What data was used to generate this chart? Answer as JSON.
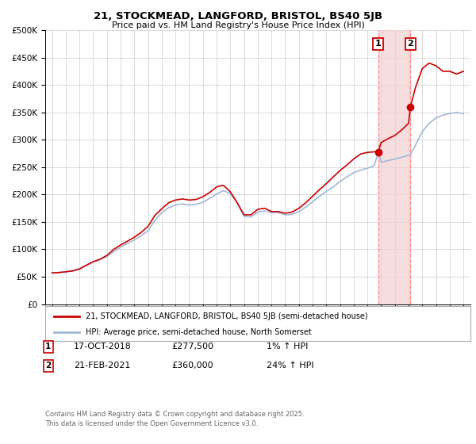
{
  "title1": "21, STOCKMEAD, LANGFORD, BRISTOL, BS40 5JB",
  "title2": "Price paid vs. HM Land Registry's House Price Index (HPI)",
  "background_color": "#ffffff",
  "plot_bg_color": "#ffffff",
  "grid_color": "#cccccc",
  "hpi_line_color": "#a0b8d8",
  "price_line_color": "#cc0000",
  "vline_color": "#ff8888",
  "vshade_color": "#f5d0d0",
  "legend_label1": "21, STOCKMEAD, LANGFORD, BRISTOL, BS40 5JB (semi-detached house)",
  "legend_label2": "HPI: Average price, semi-detached house, North Somerset",
  "annotation1_date": "17-OCT-2018",
  "annotation1_price": "£277,500",
  "annotation1_hpi": "1% ↑ HPI",
  "annotation2_date": "21-FEB-2021",
  "annotation2_price": "£360,000",
  "annotation2_hpi": "24% ↑ HPI",
  "sale1_year": 2018.79,
  "sale1_price": 277500,
  "sale2_year": 2021.13,
  "sale2_price": 360000,
  "ylim_min": 0,
  "ylim_max": 500000,
  "xlim_min": 1994.5,
  "xlim_max": 2025.5,
  "footer": "Contains HM Land Registry data © Crown copyright and database right 2025.\nThis data is licensed under the Open Government Licence v3.0.",
  "hpi_years": [
    1995.0,
    1995.5,
    1996.0,
    1996.5,
    1997.0,
    1997.5,
    1998.0,
    1998.5,
    1999.0,
    1999.5,
    2000.0,
    2000.5,
    2001.0,
    2001.5,
    2002.0,
    2002.5,
    2003.0,
    2003.5,
    2004.0,
    2004.5,
    2005.0,
    2005.5,
    2006.0,
    2006.5,
    2007.0,
    2007.5,
    2008.0,
    2008.5,
    2009.0,
    2009.5,
    2010.0,
    2010.5,
    2011.0,
    2011.5,
    2012.0,
    2012.5,
    2013.0,
    2013.5,
    2014.0,
    2014.5,
    2015.0,
    2015.5,
    2016.0,
    2016.5,
    2017.0,
    2017.5,
    2018.0,
    2018.5,
    2018.79,
    2019.0,
    2019.5,
    2020.0,
    2020.5,
    2021.0,
    2021.13,
    2021.5,
    2022.0,
    2022.5,
    2023.0,
    2023.5,
    2024.0,
    2024.5,
    2025.0
  ],
  "hpi_values": [
    57000,
    57500,
    59000,
    61500,
    65000,
    71000,
    77000,
    81000,
    87000,
    96000,
    104000,
    111000,
    117000,
    125000,
    134000,
    153000,
    167000,
    176000,
    181000,
    183000,
    181000,
    182000,
    186000,
    193000,
    201000,
    207000,
    202000,
    185000,
    160000,
    159000,
    168000,
    170000,
    167000,
    167000,
    163000,
    164000,
    169000,
    177000,
    187000,
    197000,
    206000,
    214000,
    224000,
    232000,
    240000,
    245000,
    248000,
    253000,
    277500,
    259000,
    262000,
    265000,
    268000,
    272000,
    272000,
    290000,
    315000,
    330000,
    340000,
    345000,
    348000,
    350000,
    348000
  ],
  "price_years": [
    1995.0,
    1995.5,
    1996.0,
    1996.5,
    1997.0,
    1997.5,
    1998.0,
    1998.5,
    1999.0,
    1999.5,
    2000.0,
    2000.5,
    2001.0,
    2001.5,
    2002.0,
    2002.5,
    2003.0,
    2003.5,
    2004.0,
    2004.5,
    2005.0,
    2005.5,
    2006.0,
    2006.5,
    2007.0,
    2007.5,
    2008.0,
    2008.5,
    2009.0,
    2009.5,
    2010.0,
    2010.5,
    2011.0,
    2011.5,
    2012.0,
    2012.5,
    2013.0,
    2013.5,
    2014.0,
    2014.5,
    2015.0,
    2015.5,
    2016.0,
    2016.5,
    2017.0,
    2017.5,
    2018.0,
    2018.5,
    2018.79,
    2019.0,
    2019.5,
    2020.0,
    2020.5,
    2021.0,
    2021.13,
    2021.5,
    2022.0,
    2022.5,
    2023.0,
    2023.5,
    2024.0,
    2024.5,
    2025.0
  ],
  "price_values": [
    57000,
    57800,
    59000,
    60500,
    64000,
    71000,
    77500,
    82000,
    89000,
    100000,
    108000,
    115000,
    122000,
    131000,
    142000,
    162000,
    174000,
    185000,
    190000,
    192000,
    190000,
    191000,
    196000,
    204000,
    214000,
    217000,
    205000,
    185000,
    163000,
    163000,
    173000,
    175000,
    169000,
    169000,
    166000,
    168000,
    175000,
    185000,
    197000,
    209000,
    220000,
    232000,
    244000,
    254000,
    265000,
    274000,
    277000,
    278000,
    277500,
    295000,
    302000,
    308000,
    318000,
    330000,
    360000,
    395000,
    430000,
    440000,
    435000,
    425000,
    425000,
    420000,
    425000
  ]
}
